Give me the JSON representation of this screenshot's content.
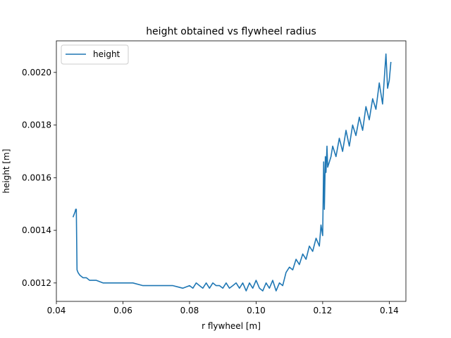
{
  "chart_data": {
    "type": "line",
    "title": "height obtained vs flywheel radius",
    "xlabel": "r flywheel [m]",
    "ylabel": "height [m]",
    "xlim": [
      0.04,
      0.145
    ],
    "ylim": [
      0.00113,
      0.00212
    ],
    "grid": false,
    "legend_position": "upper-left",
    "x_ticks": [
      0.04,
      0.06,
      0.08,
      0.1,
      0.12,
      0.14
    ],
    "x_tick_labels": [
      "0.04",
      "0.06",
      "0.08",
      "0.10",
      "0.12",
      "0.14"
    ],
    "y_ticks": [
      0.0012,
      0.0014,
      0.0016,
      0.0018,
      0.002
    ],
    "y_tick_labels": [
      "0.0012",
      "0.0014",
      "0.0016",
      "0.0018",
      "0.0020"
    ],
    "series": [
      {
        "name": "height",
        "color": "#1f77b4",
        "x": [
          0.045,
          0.0456,
          0.0458,
          0.046,
          0.0462,
          0.0465,
          0.047,
          0.0475,
          0.048,
          0.049,
          0.05,
          0.052,
          0.054,
          0.056,
          0.058,
          0.06,
          0.063,
          0.066,
          0.069,
          0.072,
          0.075,
          0.078,
          0.08,
          0.081,
          0.082,
          0.083,
          0.084,
          0.085,
          0.086,
          0.087,
          0.088,
          0.089,
          0.09,
          0.091,
          0.092,
          0.093,
          0.094,
          0.095,
          0.096,
          0.097,
          0.098,
          0.099,
          0.1,
          0.101,
          0.102,
          0.103,
          0.104,
          0.105,
          0.106,
          0.107,
          0.108,
          0.109,
          0.11,
          0.111,
          0.112,
          0.113,
          0.114,
          0.115,
          0.116,
          0.117,
          0.118,
          0.119,
          0.1195,
          0.12,
          0.1203,
          0.1205,
          0.1208,
          0.121,
          0.1213,
          0.1215,
          0.122,
          0.1225,
          0.123,
          0.124,
          0.125,
          0.126,
          0.127,
          0.128,
          0.129,
          0.13,
          0.131,
          0.132,
          0.133,
          0.134,
          0.135,
          0.136,
          0.137,
          0.138,
          0.139,
          0.1395,
          0.14,
          0.1405
        ],
        "values": [
          0.00145,
          0.00147,
          0.00148,
          0.00148,
          0.00125,
          0.00124,
          0.00123,
          0.001225,
          0.00122,
          0.00122,
          0.00121,
          0.00121,
          0.0012,
          0.0012,
          0.0012,
          0.0012,
          0.0012,
          0.00119,
          0.00119,
          0.00119,
          0.00119,
          0.00118,
          0.00119,
          0.00118,
          0.0012,
          0.00119,
          0.00118,
          0.0012,
          0.00118,
          0.0012,
          0.00119,
          0.00119,
          0.00118,
          0.0012,
          0.00118,
          0.00119,
          0.0012,
          0.00118,
          0.0012,
          0.00117,
          0.0012,
          0.00118,
          0.00121,
          0.00118,
          0.00117,
          0.0012,
          0.00118,
          0.00121,
          0.00117,
          0.0012,
          0.00119,
          0.00124,
          0.00126,
          0.00125,
          0.00129,
          0.00127,
          0.00131,
          0.00129,
          0.00134,
          0.00132,
          0.00137,
          0.00134,
          0.00142,
          0.00138,
          0.00166,
          0.00148,
          0.00168,
          0.00162,
          0.00172,
          0.00164,
          0.00166,
          0.00168,
          0.00172,
          0.00168,
          0.00175,
          0.0017,
          0.00178,
          0.00172,
          0.0018,
          0.00176,
          0.00183,
          0.00178,
          0.00187,
          0.00182,
          0.0019,
          0.00186,
          0.00196,
          0.00188,
          0.00207,
          0.00194,
          0.00197,
          0.00204
        ]
      }
    ]
  }
}
